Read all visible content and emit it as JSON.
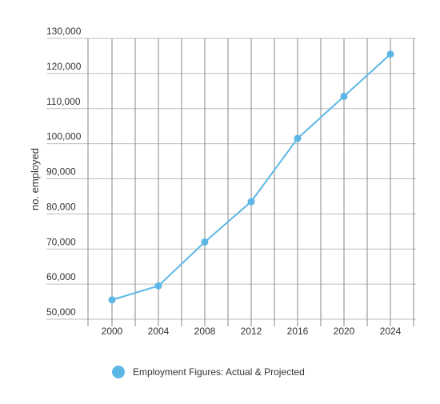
{
  "chart_data": {
    "type": "line",
    "title": "",
    "xlabel": "",
    "ylabel": "no. employed",
    "x": [
      2000,
      2004,
      2008,
      2012,
      2016,
      2020,
      2024
    ],
    "x_tick_labels": [
      "2000",
      "2004",
      "2008",
      "2012",
      "2016",
      "2020",
      "2024"
    ],
    "series": [
      {
        "name": "Employment Figures: Actual & Projected",
        "color": "#5DB7E5",
        "values": [
          55500,
          59500,
          72000,
          83500,
          101500,
          113500,
          125500
        ]
      }
    ],
    "ylim": [
      50000,
      130000
    ],
    "y_ticks": [
      50000,
      60000,
      70000,
      80000,
      90000,
      100000,
      110000,
      120000,
      130000
    ],
    "y_tick_labels": [
      "50,000",
      "60,000",
      "70,000",
      "80,000",
      "90,000",
      "100,000",
      "110,000",
      "120,000",
      "130,000"
    ],
    "grid": true,
    "legend_position": "bottom"
  }
}
